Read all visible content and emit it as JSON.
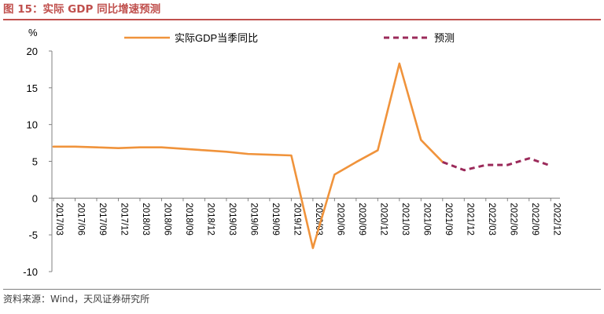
{
  "figure_title": "图 15：实际 GDP 同比增速预测",
  "source_note": "资料来源：Wind，天风证券研究所",
  "colors": {
    "title": "#c0504d",
    "actual": "#f0933b",
    "forecast": "#9b2a5a",
    "axis": "#808080"
  },
  "chart_data": {
    "type": "line",
    "title": "",
    "ylabel": "%",
    "xlabel": "",
    "ylim": [
      -10,
      20
    ],
    "yticks": [
      -10,
      -5,
      0,
      5,
      10,
      15,
      20
    ],
    "legend_position": "top",
    "grid": false,
    "categories": [
      "2017/03",
      "2017/06",
      "2017/09",
      "2017/12",
      "2018/03",
      "2018/06",
      "2018/09",
      "2018/12",
      "2019/03",
      "2019/06",
      "2019/09",
      "2019/12",
      "2020/03",
      "2020/06",
      "2020/09",
      "2020/12",
      "2021/03",
      "2021/06",
      "2021/09",
      "2021/12",
      "2022/03",
      "2022/06",
      "2022/09",
      "2022/12"
    ],
    "series": [
      {
        "name": "实际GDP当季同比",
        "style": "solid",
        "values": [
          7.0,
          7.0,
          6.9,
          6.8,
          6.9,
          6.9,
          6.7,
          6.5,
          6.3,
          6.0,
          5.9,
          5.8,
          -6.8,
          3.2,
          4.9,
          6.5,
          18.3,
          7.9,
          4.9,
          null,
          null,
          null,
          null,
          null
        ]
      },
      {
        "name": "预测",
        "style": "dashed",
        "values": [
          null,
          null,
          null,
          null,
          null,
          null,
          null,
          null,
          null,
          null,
          null,
          null,
          null,
          null,
          null,
          null,
          null,
          null,
          4.9,
          3.8,
          4.5,
          4.5,
          5.4,
          4.4
        ]
      }
    ]
  }
}
